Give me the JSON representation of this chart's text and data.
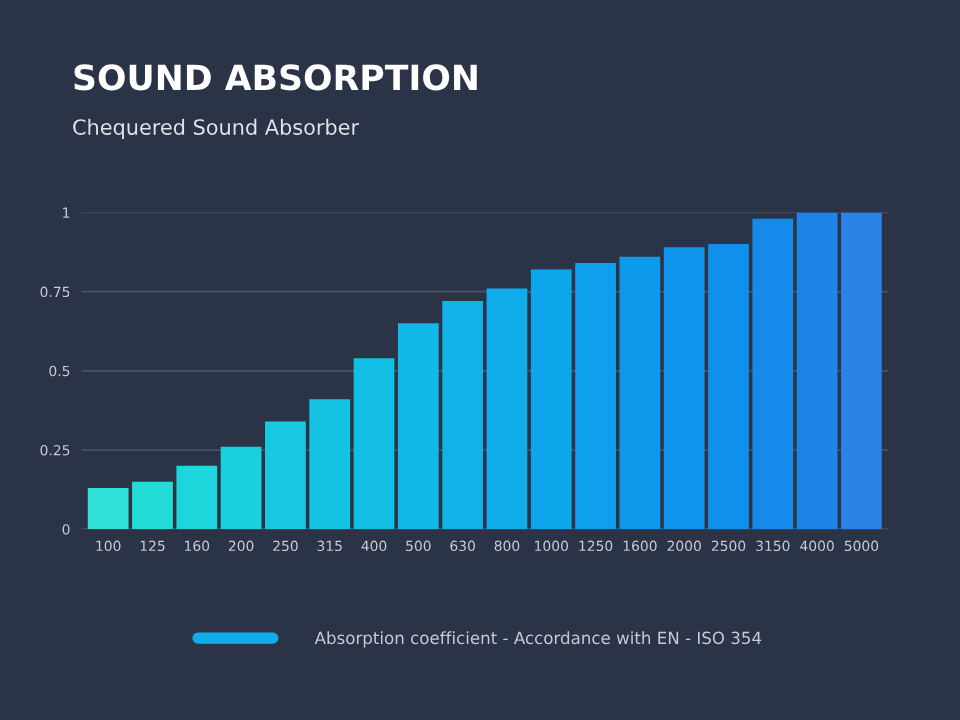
{
  "chart_data": {
    "type": "bar",
    "title": "SOUND ABSORPTION",
    "subtitle": "Chequered Sound Absorber",
    "categories": [
      "100",
      "125",
      "160",
      "200",
      "250",
      "315",
      "400",
      "500",
      "630",
      "800",
      "1000",
      "1250",
      "1600",
      "2000",
      "2500",
      "3150",
      "4000",
      "5000"
    ],
    "series": [
      {
        "name": "Absorption coefficient - Accordance with EN - ISO 354",
        "values": [
          0.13,
          0.15,
          0.2,
          0.26,
          0.34,
          0.41,
          0.54,
          0.65,
          0.72,
          0.76,
          0.82,
          0.84,
          0.86,
          0.89,
          0.9,
          0.98,
          1.0,
          1.0
        ],
        "colors": [
          "#30e0d6",
          "#22dcd8",
          "#1cd6dc",
          "#19d0df",
          "#17cae1",
          "#15c4e3",
          "#13bee5",
          "#12b8e7",
          "#10b2e9",
          "#0facea",
          "#0ea6eb",
          "#0ea0ec",
          "#0e9aec",
          "#0f95ec",
          "#1190eb",
          "#168aea",
          "#1d85e8",
          "#2b82e6"
        ]
      }
    ],
    "ylim": [
      0,
      1
    ],
    "yticks": [
      0,
      0.25,
      0.5,
      0.75,
      1
    ],
    "grid": "y",
    "legend": "bottom"
  }
}
